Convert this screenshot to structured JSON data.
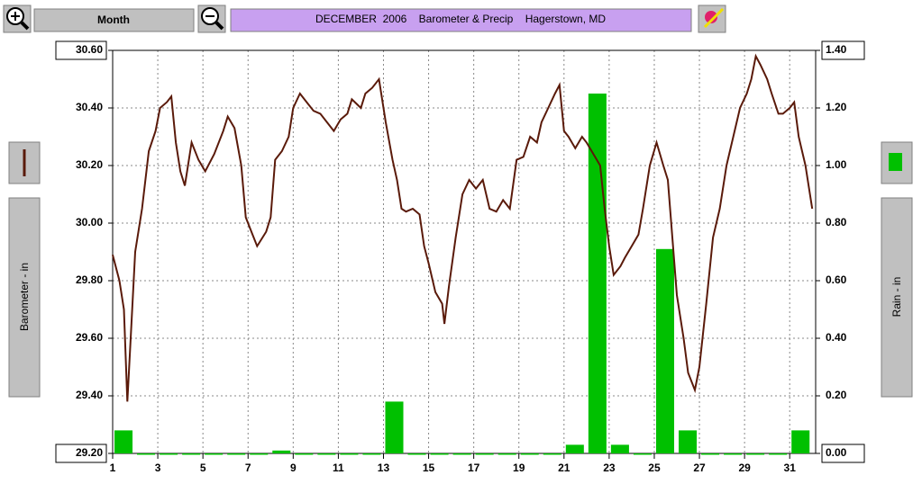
{
  "toolbar": {
    "period": "Month"
  },
  "chart_data": {
    "type": "line-bar",
    "title": "DECEMBER  2006    Barometer & Precip    Hagerstown, MD",
    "y_label": "Barometer - in",
    "y2_label": "Rain - in",
    "xlim": [
      1,
      32.15
    ],
    "xticks": [
      1,
      3,
      5,
      7,
      9,
      11,
      13,
      15,
      17,
      19,
      21,
      23,
      25,
      27,
      29,
      31
    ],
    "ylim": [
      29.2,
      30.6
    ],
    "yticks": [
      {
        "value": 29.2,
        "label": "29.20"
      },
      {
        "value": 29.4,
        "label": "29.40"
      },
      {
        "value": 29.6,
        "label": "29.60"
      },
      {
        "value": 29.8,
        "label": "29.80"
      },
      {
        "value": 30.0,
        "label": "30.00"
      },
      {
        "value": 30.2,
        "label": "30.20"
      },
      {
        "value": 30.4,
        "label": "30.40"
      },
      {
        "value": 30.6,
        "label": "30.60"
      }
    ],
    "y2lim": [
      0,
      1.4
    ],
    "y2ticks": [
      {
        "value": 0,
        "label": "0.00"
      },
      {
        "value": 0.2,
        "label": "0.20"
      },
      {
        "value": 0.4,
        "label": "0.40"
      },
      {
        "value": 0.6,
        "label": "0.60"
      },
      {
        "value": 0.8,
        "label": "0.80"
      },
      {
        "value": 1.0,
        "label": "1.00"
      },
      {
        "value": 1.2,
        "label": "1.20"
      },
      {
        "value": 1.4,
        "label": "1.40"
      }
    ],
    "grid": true,
    "series": [
      {
        "type": "bar",
        "axis": "y2",
        "color": "#00c000",
        "x": [
          1,
          2,
          3,
          4,
          5,
          6,
          7,
          8,
          9,
          10,
          11,
          12,
          13,
          14,
          15,
          16,
          17,
          18,
          19,
          20,
          21,
          22,
          23,
          24,
          25,
          26,
          27,
          28,
          29,
          30,
          31
        ],
        "values": [
          0.08,
          0,
          0,
          0,
          0,
          0,
          0,
          0.01,
          0,
          0,
          0,
          0,
          0.18,
          0,
          0,
          0,
          0,
          0,
          0,
          0,
          0.03,
          1.25,
          0.03,
          0,
          0.71,
          0.08,
          0,
          0,
          0,
          0,
          0.08
        ]
      },
      {
        "type": "line",
        "axis": "y",
        "color": "#5a1a0a",
        "x": [
          1.0,
          1.3,
          1.5,
          1.65,
          1.8,
          2.0,
          2.3,
          2.6,
          2.9,
          3.1,
          3.4,
          3.6,
          3.8,
          4.0,
          4.2,
          4.5,
          4.8,
          5.1,
          5.5,
          5.9,
          6.1,
          6.4,
          6.7,
          6.9,
          7.2,
          7.4,
          7.8,
          8.0,
          8.2,
          8.5,
          8.8,
          9.0,
          9.3,
          9.6,
          9.9,
          10.2,
          10.5,
          10.8,
          11.1,
          11.4,
          11.6,
          12.0,
          12.2,
          12.5,
          12.8,
          13.1,
          13.4,
          13.6,
          13.8,
          14.0,
          14.3,
          14.6,
          14.8,
          15.0,
          15.3,
          15.6,
          15.7,
          15.9,
          16.2,
          16.5,
          16.8,
          17.1,
          17.4,
          17.7,
          18.0,
          18.3,
          18.6,
          18.9,
          19.2,
          19.5,
          19.8,
          20.0,
          20.3,
          20.6,
          20.8,
          21.0,
          21.2,
          21.5,
          21.8,
          22.0,
          22.3,
          22.6,
          22.8,
          23.0,
          23.2,
          23.5,
          23.7,
          24.0,
          24.3,
          24.5,
          24.8,
          25.1,
          25.4,
          25.6,
          25.8,
          26.0,
          26.3,
          26.5,
          26.8,
          27.0,
          27.3,
          27.6,
          27.9,
          28.2,
          28.5,
          28.8,
          29.1,
          29.3,
          29.5,
          29.7,
          30.0,
          30.2,
          30.5,
          30.7,
          31.0,
          31.2,
          31.4,
          31.7,
          32.0
        ],
        "values": [
          29.89,
          29.8,
          29.7,
          29.38,
          29.6,
          29.9,
          30.05,
          30.25,
          30.32,
          30.4,
          30.42,
          30.44,
          30.28,
          30.18,
          30.13,
          30.28,
          30.22,
          30.18,
          30.24,
          30.32,
          30.37,
          30.33,
          30.2,
          30.02,
          29.96,
          29.92,
          29.97,
          30.02,
          30.22,
          30.25,
          30.3,
          30.4,
          30.45,
          30.42,
          30.39,
          30.38,
          30.35,
          30.32,
          30.36,
          30.38,
          30.43,
          30.4,
          30.45,
          30.47,
          30.5,
          30.35,
          30.22,
          30.15,
          30.05,
          30.04,
          30.05,
          30.03,
          29.92,
          29.86,
          29.76,
          29.72,
          29.65,
          29.78,
          29.95,
          30.1,
          30.15,
          30.12,
          30.15,
          30.05,
          30.04,
          30.08,
          30.05,
          30.22,
          30.23,
          30.3,
          30.28,
          30.35,
          30.4,
          30.45,
          30.48,
          30.32,
          30.3,
          30.26,
          30.3,
          30.28,
          30.24,
          30.2,
          30.05,
          29.92,
          29.82,
          29.85,
          29.88,
          29.92,
          29.96,
          30.05,
          30.2,
          30.28,
          30.2,
          30.15,
          29.95,
          29.75,
          29.6,
          29.48,
          29.42,
          29.5,
          29.72,
          29.95,
          30.05,
          30.2,
          30.3,
          30.4,
          30.45,
          30.5,
          30.58,
          30.55,
          30.5,
          30.45,
          30.38,
          30.38,
          30.4,
          30.42,
          30.3,
          30.2,
          30.05
        ]
      }
    ]
  }
}
